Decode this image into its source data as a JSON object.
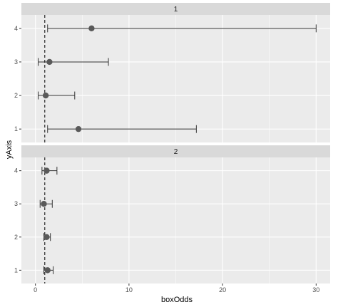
{
  "chart_data": {
    "type": "errorbar",
    "facets": [
      {
        "label": "1",
        "points": [
          {
            "y": 4,
            "estimate": 6.0,
            "lower": 1.3,
            "upper": 30.0
          },
          {
            "y": 3,
            "estimate": 1.5,
            "lower": 0.3,
            "upper": 7.8
          },
          {
            "y": 2,
            "estimate": 1.1,
            "lower": 0.3,
            "upper": 4.2
          },
          {
            "y": 1,
            "estimate": 4.6,
            "lower": 1.3,
            "upper": 17.2
          }
        ]
      },
      {
        "label": "2",
        "points": [
          {
            "y": 4,
            "estimate": 1.2,
            "lower": 0.7,
            "upper": 2.3
          },
          {
            "y": 3,
            "estimate": 0.9,
            "lower": 0.5,
            "upper": 1.8
          },
          {
            "y": 2,
            "estimate": 1.2,
            "lower": 0.9,
            "upper": 1.6
          },
          {
            "y": 1,
            "estimate": 1.3,
            "lower": 0.9,
            "upper": 1.9
          }
        ]
      }
    ],
    "reference_line_x": 1,
    "xlabel": "boxOdds",
    "ylabel": "yAxis",
    "xlim": [
      -1.5,
      31.5
    ],
    "xticks": [
      0,
      10,
      20,
      30
    ],
    "yticks": [
      1,
      2,
      3,
      4
    ],
    "ylim": [
      0.6,
      4.4
    ],
    "grid": true,
    "colors": {
      "panel": "#EBEBEB",
      "grid": "#FFFFFF",
      "strip": "#D9D9D9",
      "point": "#595959",
      "errorbar": "#333333",
      "reference": "#000000"
    }
  }
}
